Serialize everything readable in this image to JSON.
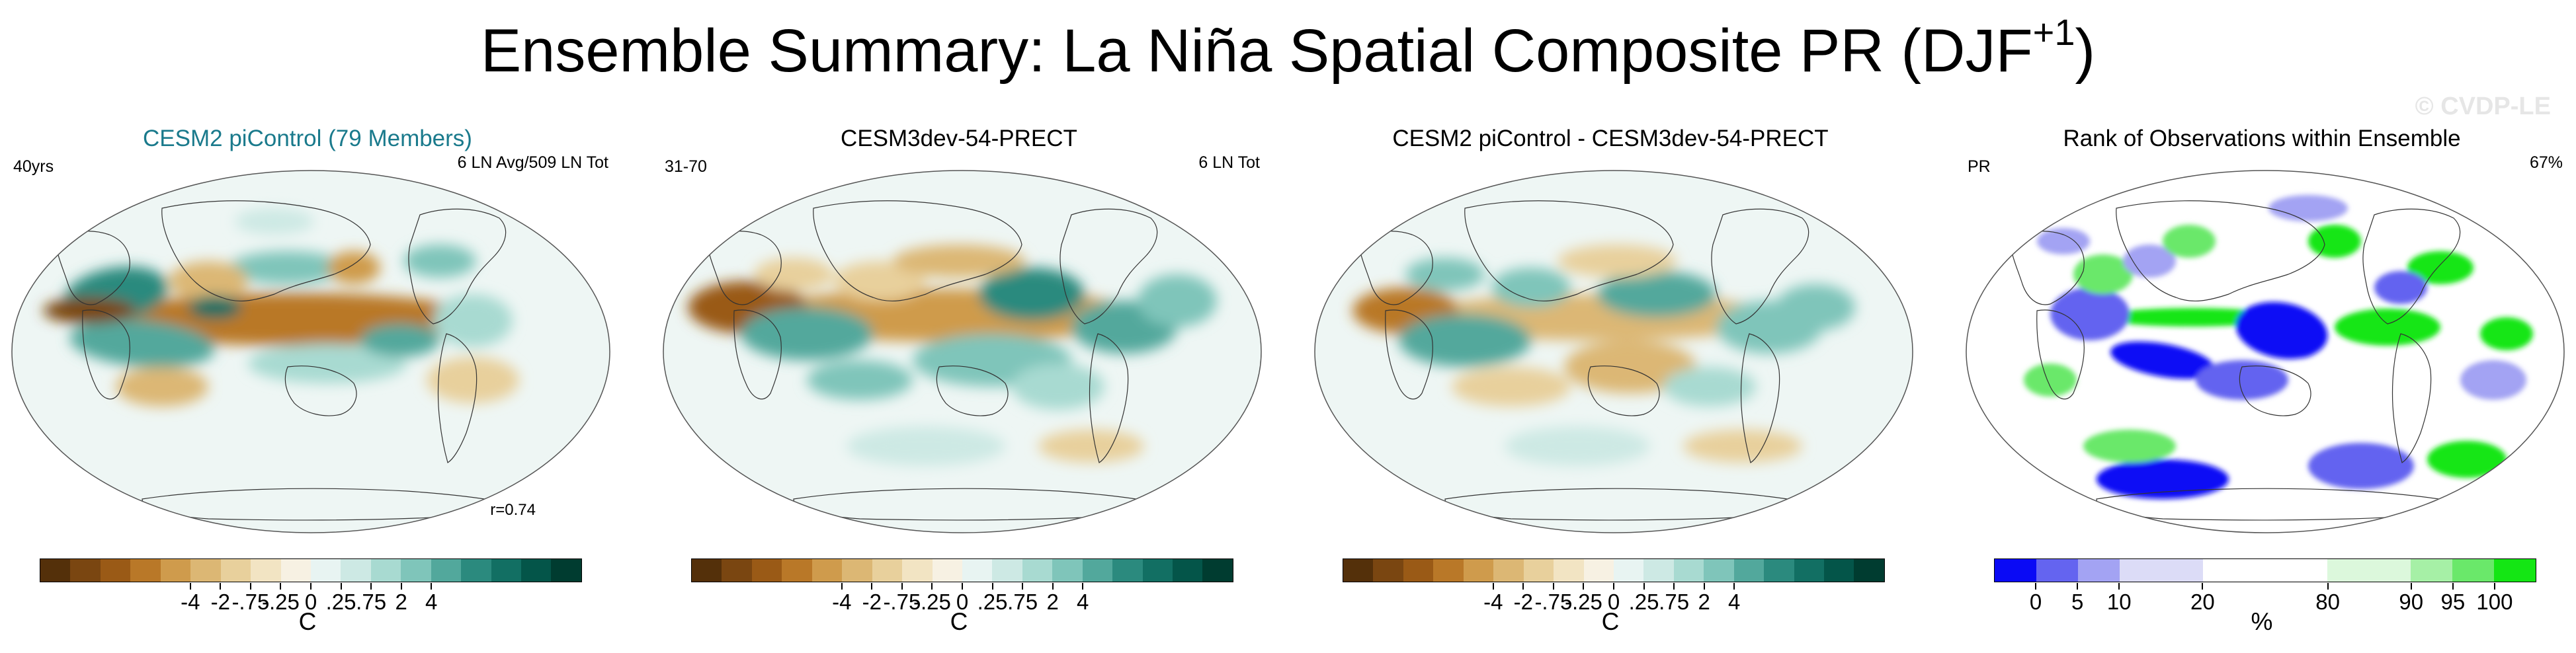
{
  "title": {
    "main": "Ensemble Summary: La Niña Spatial Composite PR (DJF",
    "sup": "+1",
    "close": ")"
  },
  "watermark": "© CVDP-LE",
  "panels": [
    {
      "title": "CESM2 piControl (79 Members)",
      "title_color": "#1a7a8c",
      "left_label": "40yrs",
      "right_label": "6 LN Avg/509 LN Tot",
      "corr_label": "r=0.74",
      "colorbar": {
        "palette": "brbg",
        "tick_labels": [
          "-4",
          "-2",
          "-.75",
          "-.25",
          "0",
          ".25",
          ".75",
          "2",
          "4"
        ],
        "units": "C"
      }
    },
    {
      "title": "CESM3dev-54-PRECT",
      "title_color": "#000000",
      "left_label": "31-70",
      "right_label": "6 LN Tot",
      "corr_label": "",
      "colorbar": {
        "palette": "brbg",
        "tick_labels": [
          "-4",
          "-2",
          "-.75",
          "-.25",
          "0",
          ".25",
          ".75",
          "2",
          "4"
        ],
        "units": "C"
      }
    },
    {
      "title": "CESM2 piControl - CESM3dev-54-PRECT",
      "title_color": "#000000",
      "left_label": "",
      "right_label": "",
      "corr_label": "",
      "colorbar": {
        "palette": "brbg",
        "tick_labels": [
          "-4",
          "-2",
          "-.75",
          "-.25",
          "0",
          ".25",
          ".75",
          "2",
          "4"
        ],
        "units": "C"
      }
    },
    {
      "title": "Rank of Observations within Ensemble",
      "title_color": "#000000",
      "left_label": "PR",
      "right_label": "67%",
      "corr_label": "",
      "colorbar": {
        "palette": "rank",
        "tick_labels": [
          "0",
          "5",
          "10",
          "20",
          "80",
          "90",
          "95",
          "100"
        ],
        "units": "%"
      }
    }
  ],
  "palettes": {
    "brbg": [
      "#54300a",
      "#7a4611",
      "#9a5a16",
      "#b97828",
      "#cf9b4c",
      "#dcb774",
      "#e8d09c",
      "#f2e4c3",
      "#f7f1e3",
      "#e8f4f2",
      "#cde9e4",
      "#a8dad1",
      "#7fc5ba",
      "#52a89c",
      "#2b8a7e",
      "#126f63",
      "#045549",
      "#003c30"
    ],
    "rank": [
      "#0a0af5",
      "#6464f0",
      "#a3a3f3",
      "#dcdcf7",
      "#dcdcf7",
      "#ffffff",
      "#ffffff",
      "#ffffff",
      "#dcf8dc",
      "#dcf8dc",
      "#a6f0a6",
      "#6ae86a",
      "#14e614"
    ],
    "ocean_bg": "#eef6f4",
    "land_line": "#333333"
  }
}
